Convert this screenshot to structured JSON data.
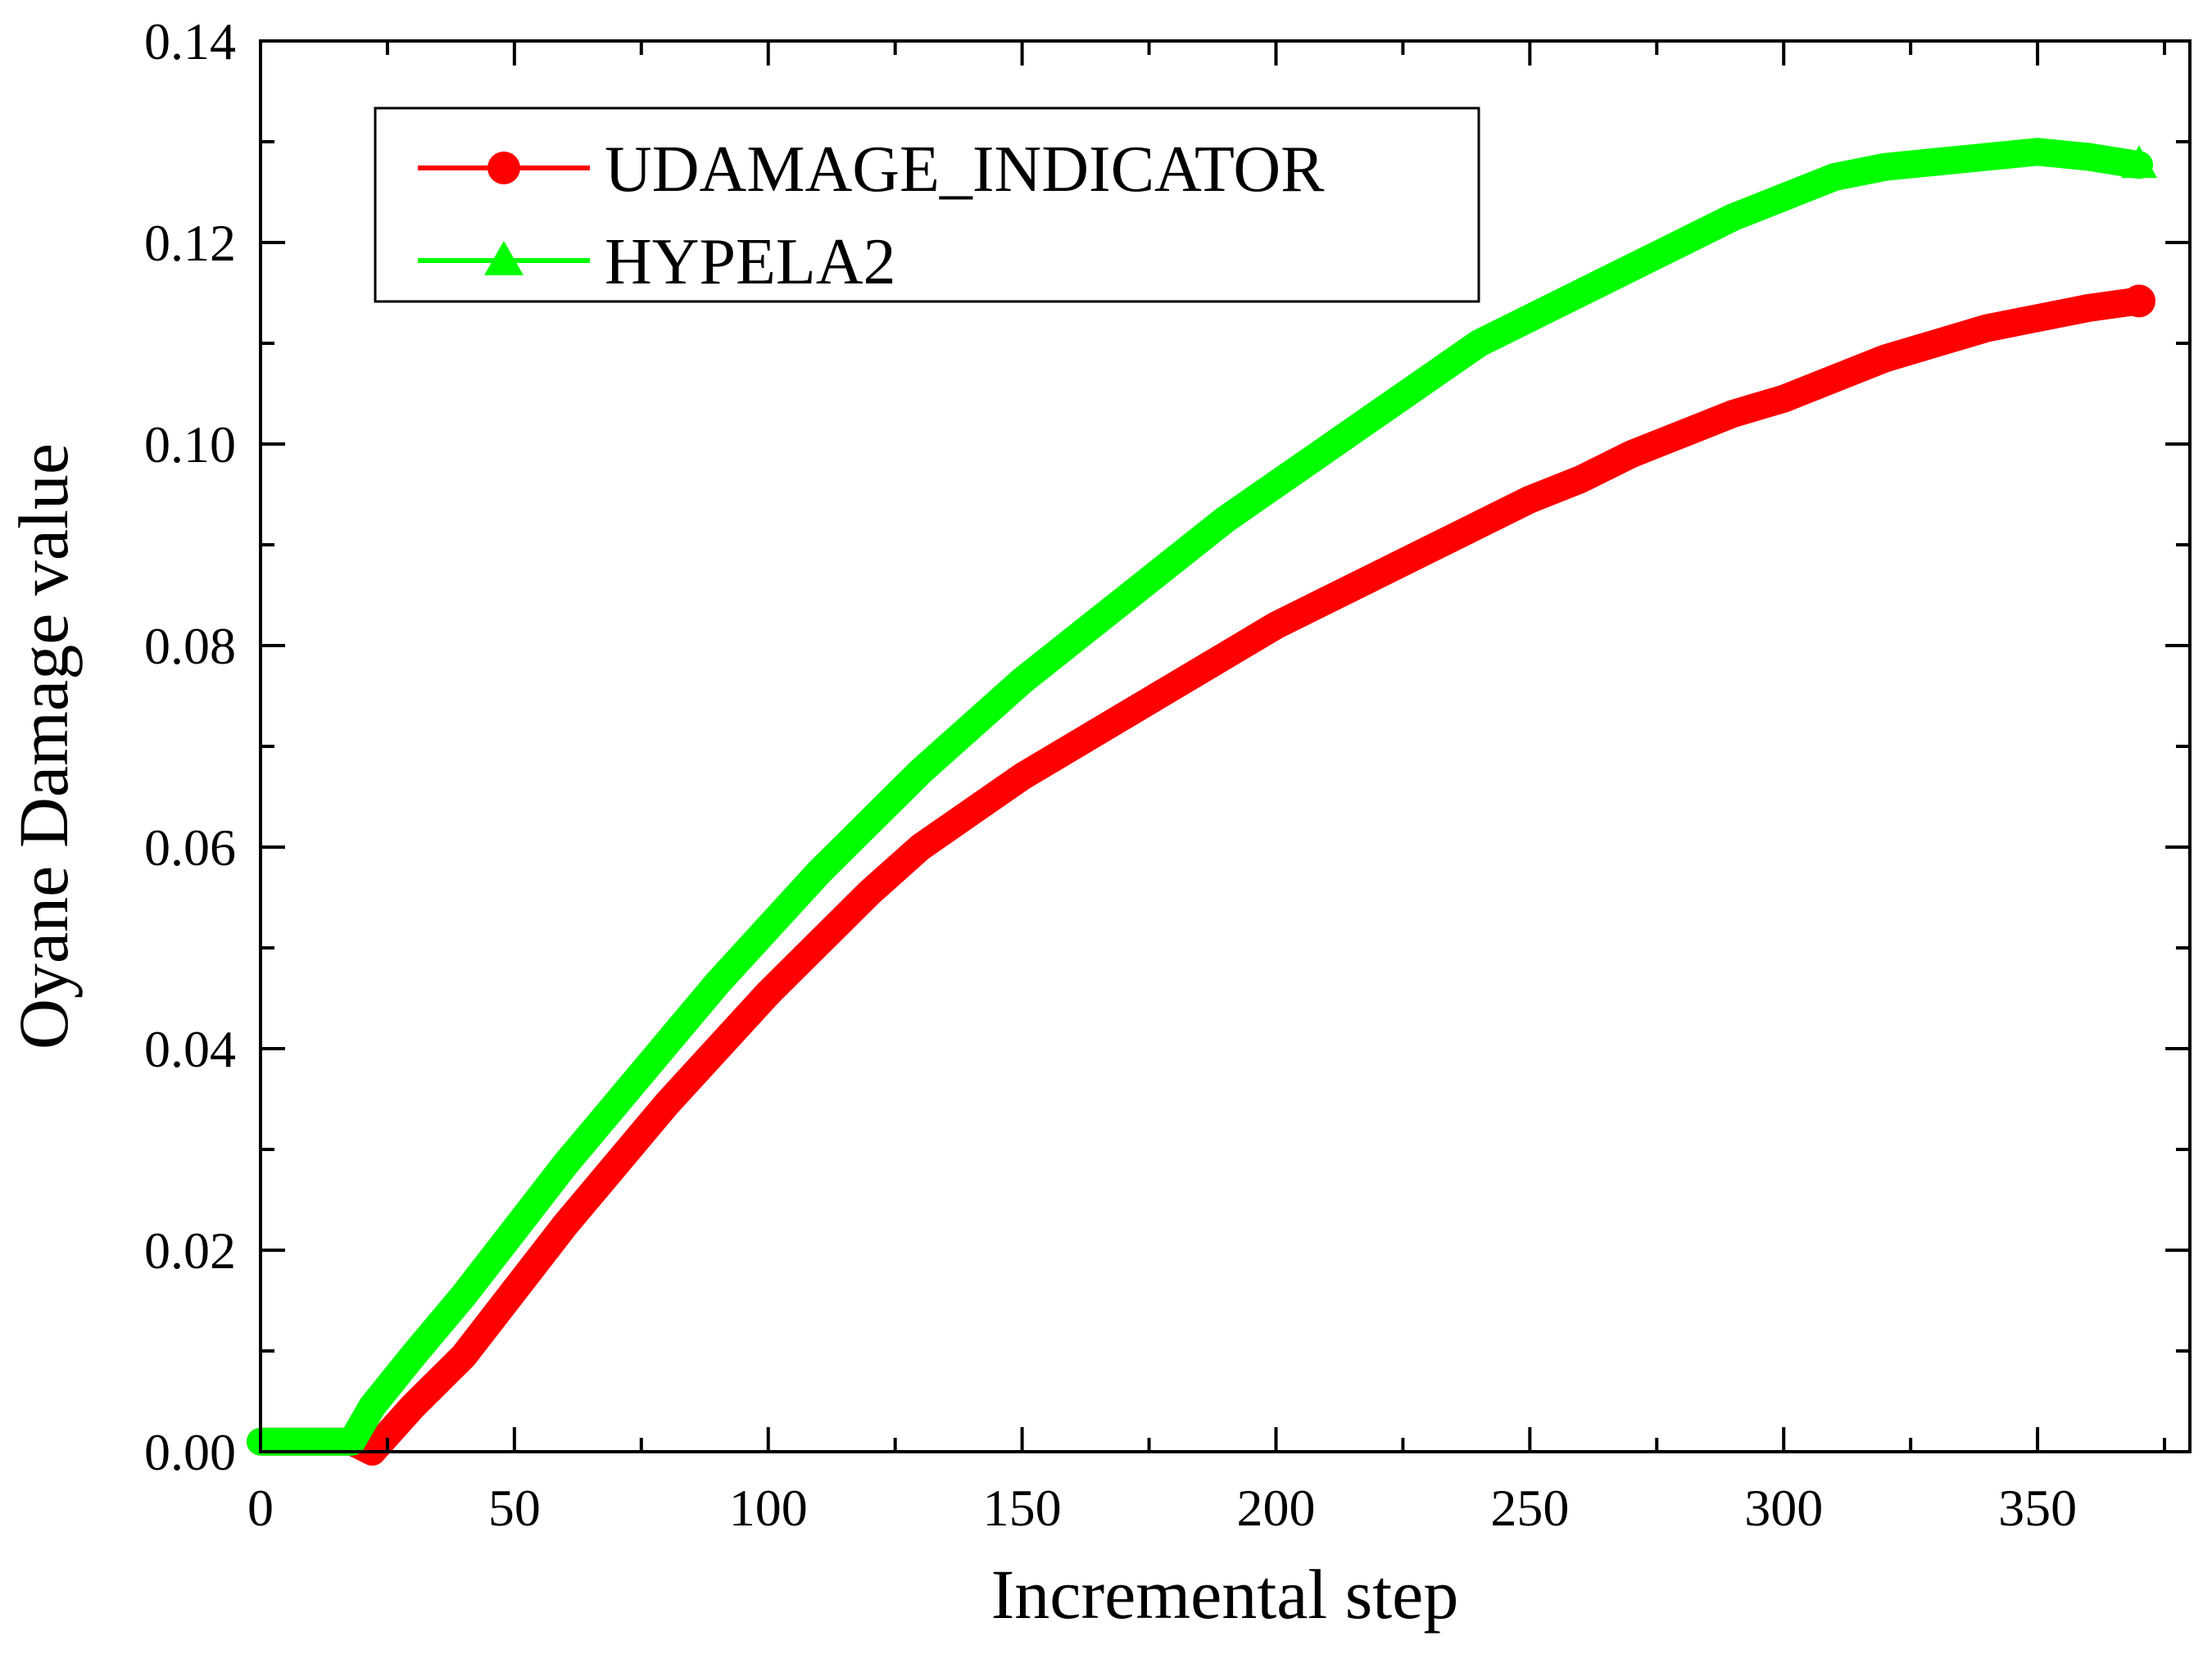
{
  "chart_data": {
    "type": "line",
    "title": "",
    "xlabel": "Incremental step",
    "ylabel": "Oyane Damage value",
    "xlim": [
      0,
      380
    ],
    "ylim": [
      0,
      0.14
    ],
    "xticks": [
      0,
      50,
      100,
      150,
      200,
      250,
      300,
      350
    ],
    "xtick_labels": [
      "0",
      "50",
      "100",
      "150",
      "200",
      "250",
      "300",
      "350"
    ],
    "yticks": [
      0,
      0.02,
      0.04,
      0.06,
      0.08,
      0.1,
      0.12,
      0.14
    ],
    "ytick_labels": [
      "0.00",
      "0.02",
      "0.04",
      "0.06",
      "0.08",
      "0.10",
      "0.12",
      "0.14"
    ],
    "grid": false,
    "legend_position": "top-left",
    "series": [
      {
        "name": "UDAMAGE_INDICATOR",
        "color": "#ff0000",
        "marker": "circle",
        "x": [
          0,
          10,
          18,
          22,
          30,
          40,
          50,
          60,
          70,
          80,
          90,
          100,
          110,
          120,
          130,
          140,
          150,
          160,
          170,
          180,
          190,
          200,
          210,
          220,
          230,
          240,
          250,
          260,
          270,
          280,
          290,
          300,
          310,
          320,
          330,
          340,
          350,
          360,
          370
        ],
        "y": [
          0.001,
          0.001,
          0.001,
          0.0,
          0.0045,
          0.0095,
          0.016,
          0.0225,
          0.0285,
          0.0345,
          0.04,
          0.0455,
          0.0505,
          0.0555,
          0.06,
          0.0635,
          0.067,
          0.07,
          0.073,
          0.076,
          0.079,
          0.082,
          0.0845,
          0.087,
          0.0895,
          0.092,
          0.0945,
          0.0965,
          0.099,
          0.101,
          0.103,
          0.1045,
          0.1065,
          0.1085,
          0.11,
          0.1115,
          0.1125,
          0.1135,
          0.1142
        ]
      },
      {
        "name": "HYPELA2",
        "color": "#00ff00",
        "marker": "triangle",
        "x": [
          0,
          10,
          18,
          22,
          30,
          40,
          50,
          60,
          70,
          80,
          90,
          100,
          110,
          120,
          130,
          140,
          150,
          160,
          170,
          180,
          190,
          200,
          210,
          220,
          230,
          240,
          250,
          260,
          270,
          280,
          290,
          300,
          310,
          320,
          330,
          340,
          350,
          360,
          370
        ],
        "y": [
          0.001,
          0.001,
          0.001,
          0.0045,
          0.0095,
          0.0155,
          0.022,
          0.0285,
          0.0345,
          0.0405,
          0.0465,
          0.052,
          0.0575,
          0.0625,
          0.0675,
          0.072,
          0.0765,
          0.0805,
          0.0845,
          0.0885,
          0.0925,
          0.096,
          0.0995,
          0.103,
          0.1065,
          0.11,
          0.1125,
          0.115,
          0.1175,
          0.12,
          0.1225,
          0.1245,
          0.1265,
          0.1275,
          0.128,
          0.1285,
          0.129,
          0.1285,
          0.1277
        ]
      }
    ]
  }
}
